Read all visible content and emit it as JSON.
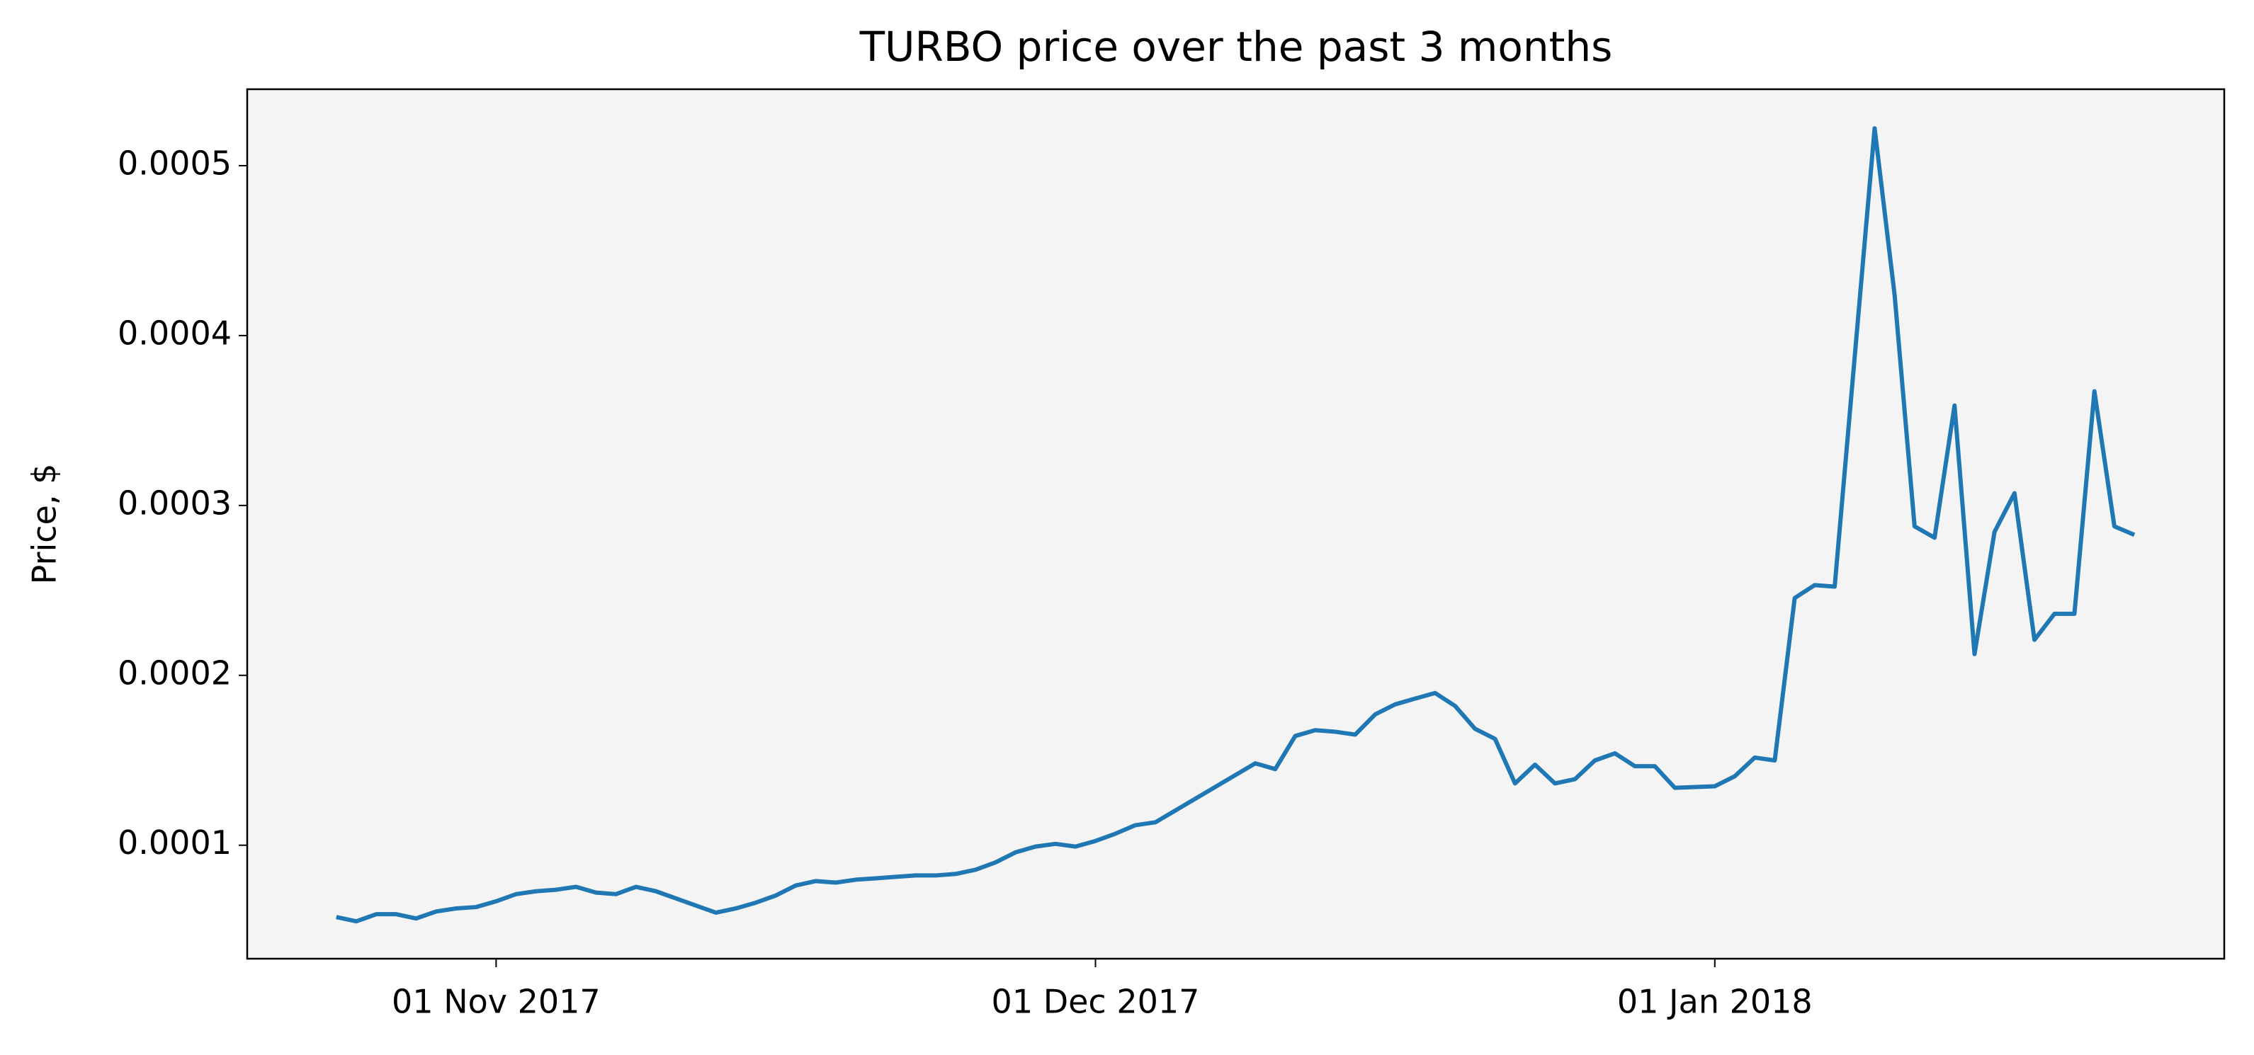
{
  "chart_data": {
    "type": "line",
    "title": "TURBO price over the past 3 months",
    "y_label": "Price, $",
    "x": [
      "2017-10-24",
      "2017-10-25",
      "2017-10-26",
      "2017-10-27",
      "2017-10-28",
      "2017-10-29",
      "2017-10-30",
      "2017-10-31",
      "2017-11-01",
      "2017-11-02",
      "2017-11-03",
      "2017-11-04",
      "2017-11-05",
      "2017-11-06",
      "2017-11-07",
      "2017-11-08",
      "2017-11-09",
      "2017-11-10",
      "2017-11-11",
      "2017-11-12",
      "2017-11-13",
      "2017-11-14",
      "2017-11-15",
      "2017-11-16",
      "2017-11-17",
      "2017-11-18",
      "2017-11-19",
      "2017-11-20",
      "2017-11-21",
      "2017-11-22",
      "2017-11-23",
      "2017-11-24",
      "2017-11-25",
      "2017-11-26",
      "2017-11-27",
      "2017-11-28",
      "2017-11-29",
      "2017-11-30",
      "2017-12-01",
      "2017-12-02",
      "2017-12-03",
      "2017-12-04",
      "2017-12-09",
      "2017-12-10",
      "2017-12-11",
      "2017-12-12",
      "2017-12-13",
      "2017-12-14",
      "2017-12-15",
      "2017-12-16",
      "2017-12-17",
      "2017-12-18",
      "2017-12-19",
      "2017-12-20",
      "2017-12-21",
      "2017-12-22",
      "2017-12-23",
      "2017-12-24",
      "2017-12-25",
      "2017-12-26",
      "2017-12-27",
      "2017-12-28",
      "2017-12-29",
      "2017-12-30",
      "2018-01-01",
      "2018-01-02",
      "2018-01-03",
      "2018-01-04",
      "2018-01-05",
      "2018-01-06",
      "2018-01-07",
      "2018-01-09",
      "2018-01-10",
      "2018-01-11",
      "2018-01-12",
      "2018-01-13",
      "2018-01-14",
      "2018-01-15",
      "2018-01-16",
      "2018-01-17",
      "2018-01-18",
      "2018-01-19",
      "2018-01-20",
      "2018-01-21",
      "2018-01-22"
    ],
    "series": [
      {
        "name": "TURBO",
        "color": "#1f77b4",
        "values": [
          5.77e-05,
          5.52e-05,
          5.94e-05,
          5.94e-05,
          5.69e-05,
          6.1e-05,
          6.28e-05,
          6.36e-05,
          6.7e-05,
          7.12e-05,
          7.29e-05,
          7.38e-05,
          7.55e-05,
          7.21e-05,
          7.12e-05,
          7.55e-05,
          7.29e-05,
          6.87e-05,
          6.45e-05,
          6.03e-05,
          6.28e-05,
          6.62e-05,
          7.04e-05,
          7.63e-05,
          7.89e-05,
          7.8e-05,
          7.97e-05,
          8.05e-05,
          8.14e-05,
          8.22e-05,
          8.22e-05,
          8.31e-05,
          8.56e-05,
          8.99e-05,
          9.58e-05,
          9.92e-05,
          0.0001008,
          9.92e-05,
          0.0001025,
          0.0001068,
          0.0001118,
          0.0001135,
          0.0001482,
          0.0001448,
          0.0001643,
          0.0001677,
          0.0001668,
          0.0001651,
          0.000177,
          0.0001829,
          0.0001863,
          0.0001896,
          0.000182,
          0.0001685,
          0.0001626,
          0.0001364,
          0.0001474,
          0.0001364,
          0.0001389,
          0.0001499,
          0.0001541,
          0.0001465,
          0.0001465,
          0.0001338,
          0.0001347,
          0.0001406,
          0.0001516,
          0.0001499,
          0.0002455,
          0.0002531,
          0.0002522,
          0.000522,
          0.0004239,
          0.0002877,
          0.000281,
          0.0003588,
          0.0002125,
          0.0002844,
          0.0003072,
          0.0002209,
          0.0002362,
          0.0002362,
          0.0003672,
          0.0002877,
          0.0002827
        ]
      }
    ],
    "xlim": [
      "2017-10-19T13:00",
      "2018-01-26T12:00"
    ],
    "xticks": [
      {
        "value": "2017-11-01",
        "label": "01 Nov 2017"
      },
      {
        "value": "2017-12-01",
        "label": "01 Dec 2017"
      },
      {
        "value": "2018-01-01",
        "label": "01 Jan 2018"
      }
    ],
    "ylim": [
      3.32e-05,
      0.000545
    ],
    "yticks": [
      0.0001,
      0.0002,
      0.0003,
      0.0004,
      0.0005
    ],
    "background": "#f4f4f4",
    "grid": false
  }
}
